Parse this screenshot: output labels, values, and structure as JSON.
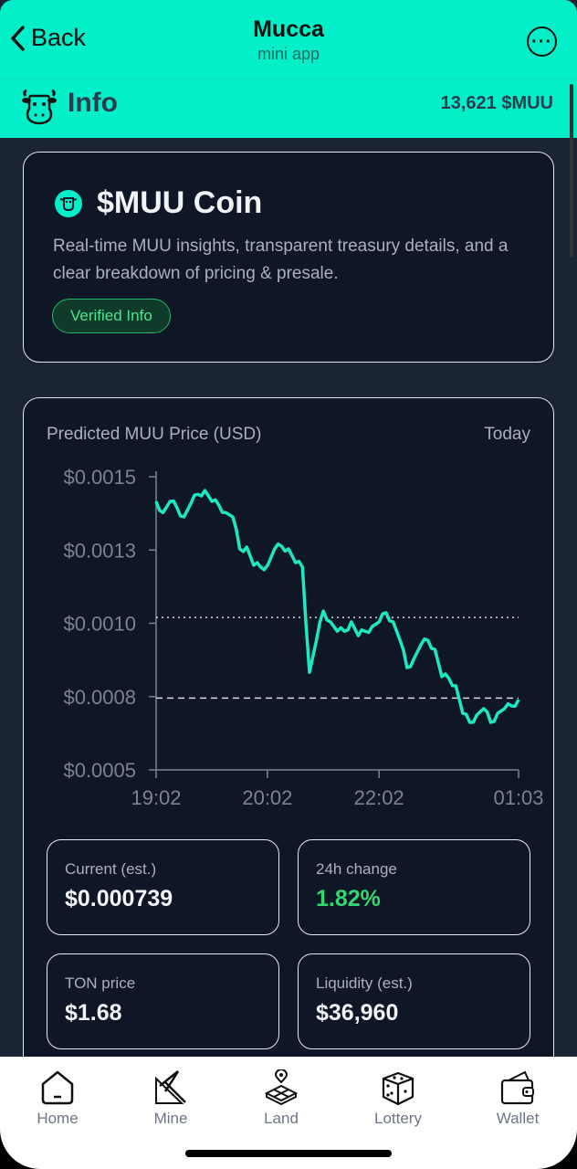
{
  "header": {
    "back_label": "Back",
    "title": "Mucca",
    "subtitle": "mini app"
  },
  "info_bar": {
    "label": "Info",
    "balance": "13,621 $MUU"
  },
  "intro_card": {
    "title": "$MUU Coin",
    "description": "Real-time MUU insights, transparent treasury details, and a clear breakdown of pricing & presale.",
    "badge": "Verified Info"
  },
  "chart_card": {
    "title": "Predicted MUU Price (USD)",
    "range": "Today"
  },
  "chart_data": {
    "type": "line",
    "title": "Predicted MUU Price (USD)",
    "ylim": [
      0.0005,
      0.0015
    ],
    "y_ticks": [
      {
        "v": 0.0005,
        "label": "$0.0005"
      },
      {
        "v": 0.00075,
        "label": "$0.0008"
      },
      {
        "v": 0.001,
        "label": "$0.0010"
      },
      {
        "v": 0.00125,
        "label": "$0.0013"
      },
      {
        "v": 0.0015,
        "label": "$0.0015"
      }
    ],
    "x_ticks": [
      "19:02",
      "20:02",
      "22:02",
      "01:03"
    ],
    "reference_lines": [
      {
        "value": 0.00102,
        "style": "dotted"
      },
      {
        "value": 0.000745,
        "style": "dashed"
      }
    ],
    "line_color": "#1de9c0",
    "grid": false,
    "values": [
      0.001416,
      0.001378,
      0.001416,
      0.001394,
      0.001363,
      0.00141,
      0.00144,
      0.001453,
      0.001416,
      0.001403,
      0.001378,
      0.001363,
      0.001254,
      0.00126,
      0.001198,
      0.001192,
      0.001198,
      0.001254,
      0.001263,
      0.001254,
      0.001207,
      0.001192,
      0.000833,
      0.000942,
      0.001042,
      0.001005,
      0.000973,
      0.000973,
      0.001005,
      0.000958,
      0.000973,
      0.000989,
      0.001005,
      0.001036,
      0.001005,
      0.000942,
      0.000849,
      0.00088,
      0.000927,
      0.000942,
      0.000911,
      0.000818,
      0.000812,
      0.000787,
      0.000693,
      0.000662,
      0.000687,
      0.000709,
      0.000662,
      0.000693,
      0.000709,
      0.000718,
      0.00074
    ]
  },
  "stats": [
    {
      "label": "Current (est.)",
      "value": "$0.000739"
    },
    {
      "label": "24h change",
      "value": "1.82%",
      "color": "#36d66f"
    },
    {
      "label": "TON price",
      "value": "$1.68"
    },
    {
      "label": "Liquidity (est.)",
      "value": "$36,960"
    }
  ],
  "nav": [
    {
      "label": "Home",
      "icon": "home-icon"
    },
    {
      "label": "Mine",
      "icon": "pickaxe-icon"
    },
    {
      "label": "Land",
      "icon": "land-icon"
    },
    {
      "label": "Lottery",
      "icon": "dice-icon"
    },
    {
      "label": "Wallet",
      "icon": "wallet-icon"
    }
  ],
  "colors": {
    "accent": "#03efc9",
    "background": "#1b2433",
    "card": "#0f1626",
    "positive": "#36d66f"
  }
}
